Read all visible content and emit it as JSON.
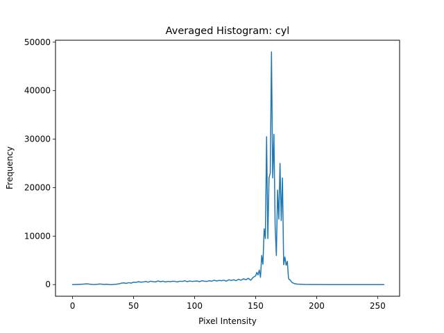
{
  "chart_data": {
    "type": "line",
    "title": "Averaged Histogram: cyl",
    "xlabel": "Pixel Intensity",
    "ylabel": "Frequency",
    "xlim": [
      -14,
      268
    ],
    "ylim": [
      -2400,
      50400
    ],
    "grid": false,
    "x_ticks": [
      0,
      50,
      100,
      150,
      200,
      250
    ],
    "y_ticks": [
      0,
      10000,
      20000,
      30000,
      40000,
      50000
    ],
    "x_tick_labels": [
      "0",
      "50",
      "100",
      "150",
      "200",
      "250"
    ],
    "y_tick_labels": [
      "0",
      "10000",
      "20000",
      "30000",
      "40000",
      "50000"
    ],
    "series": [
      {
        "color": "#1f77b4",
        "x": [
          0,
          2,
          4,
          6,
          8,
          10,
          12,
          14,
          16,
          18,
          20,
          22,
          24,
          26,
          28,
          30,
          32,
          34,
          36,
          38,
          40,
          42,
          44,
          46,
          48,
          50,
          52,
          54,
          56,
          58,
          60,
          62,
          64,
          66,
          68,
          70,
          72,
          74,
          76,
          78,
          80,
          82,
          84,
          86,
          88,
          90,
          92,
          94,
          96,
          98,
          100,
          102,
          104,
          106,
          108,
          110,
          112,
          114,
          116,
          118,
          120,
          122,
          124,
          126,
          128,
          130,
          132,
          134,
          136,
          138,
          140,
          142,
          144,
          146,
          148,
          150,
          151,
          152,
          153,
          154,
          155,
          156,
          157,
          158,
          159,
          160,
          161,
          162,
          163,
          164,
          165,
          166,
          167,
          168,
          169,
          170,
          171,
          172,
          173,
          174,
          175,
          176,
          177,
          178,
          180,
          182,
          184,
          186,
          188,
          190,
          195,
          200,
          210,
          220,
          230,
          240,
          250,
          255
        ],
        "values": [
          0,
          10,
          30,
          50,
          80,
          130,
          160,
          90,
          40,
          20,
          50,
          120,
          90,
          40,
          60,
          20,
          0,
          30,
          80,
          150,
          300,
          350,
          250,
          400,
          300,
          500,
          450,
          600,
          500,
          550,
          650,
          500,
          700,
          600,
          550,
          750,
          600,
          700,
          550,
          650,
          600,
          700,
          650,
          550,
          700,
          650,
          800,
          600,
          750,
          650,
          700,
          750,
          600,
          800,
          700,
          650,
          800,
          700,
          900,
          750,
          850,
          800,
          900,
          700,
          1000,
          850,
          1000,
          800,
          1100,
          900,
          1200,
          1000,
          1300,
          900,
          1500,
          1800,
          2500,
          2000,
          3000,
          1500,
          6000,
          4200,
          11500,
          9500,
          30500,
          9500,
          22000,
          23000,
          48000,
          22000,
          31000,
          12000,
          6000,
          19500,
          13500,
          25000,
          13200,
          22000,
          4100,
          5700,
          4000,
          4800,
          1200,
          1000,
          400,
          200,
          100,
          80,
          50,
          30,
          20,
          10,
          5,
          5,
          5,
          5,
          5,
          5
        ]
      }
    ]
  }
}
